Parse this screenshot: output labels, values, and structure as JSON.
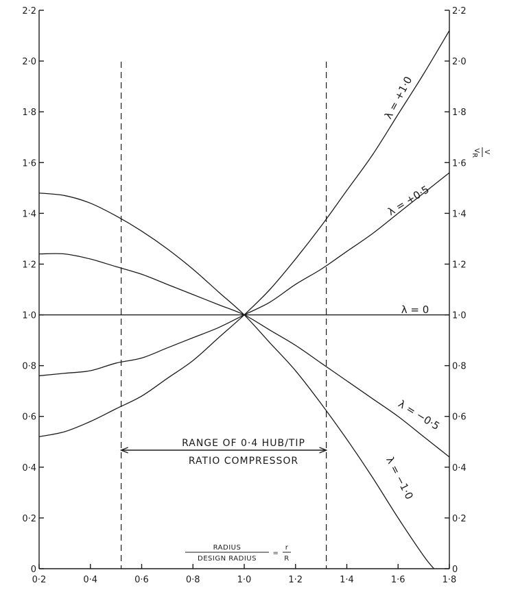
{
  "chart_data": {
    "type": "line",
    "xlabel": {
      "numerator": "RADIUS",
      "denominator": "DESIGN RADIUS",
      "equals": "=",
      "rhs_num": "r",
      "rhs_den": "R"
    },
    "ylabel_right": {
      "numerator": "V",
      "denominator": "V",
      "sub": "R"
    },
    "xlim": [
      0.2,
      1.8
    ],
    "ylim": [
      0,
      2.2
    ],
    "x_ticks": [
      "0·2",
      "0·4",
      "0·6",
      "0·8",
      "1·0",
      "1·2",
      "1·4",
      "1·6",
      "1·8"
    ],
    "x_tick_values": [
      0.2,
      0.4,
      0.6,
      0.8,
      1.0,
      1.2,
      1.4,
      1.6,
      1.8
    ],
    "y_ticks_left": [
      "0",
      "0·2",
      "0·4",
      "0·6",
      "0·8",
      "1·0",
      "1·2",
      "1·4",
      "1·6",
      "1·8",
      "2·0",
      "2·2"
    ],
    "y_ticks_right": [
      "0",
      "0·2",
      "0·4",
      "0·6",
      "0·8",
      "1·0",
      "1·2",
      "1·4",
      "1·6",
      "1·8",
      "2·0",
      "2·2"
    ],
    "y_tick_values": [
      0,
      0.2,
      0.4,
      0.6,
      0.8,
      1.0,
      1.2,
      1.4,
      1.6,
      1.8,
      2.0,
      2.2
    ],
    "series": [
      {
        "name": "λ = +1·0",
        "lambda": 1.0,
        "x": [
          0.2,
          0.3,
          0.4,
          0.5,
          0.6,
          0.7,
          0.8,
          0.9,
          1.0,
          1.1,
          1.2,
          1.3,
          1.4,
          1.5,
          1.6,
          1.7,
          1.8
        ],
        "y": [
          0.52,
          0.54,
          0.58,
          0.63,
          0.68,
          0.75,
          0.82,
          0.91,
          1.0,
          1.1,
          1.22,
          1.35,
          1.49,
          1.63,
          1.79,
          1.95,
          2.12
        ]
      },
      {
        "name": "λ = +0·5",
        "lambda": 0.5,
        "x": [
          0.2,
          0.3,
          0.4,
          0.5,
          0.6,
          0.7,
          0.8,
          0.9,
          1.0,
          1.1,
          1.2,
          1.3,
          1.4,
          1.5,
          1.6,
          1.7,
          1.8
        ],
        "y": [
          0.76,
          0.77,
          0.78,
          0.81,
          0.83,
          0.87,
          0.91,
          0.95,
          1.0,
          1.05,
          1.12,
          1.18,
          1.25,
          1.32,
          1.4,
          1.48,
          1.56
        ]
      },
      {
        "name": "λ = 0",
        "lambda": 0,
        "x": [
          0.2,
          1.8
        ],
        "y": [
          1.0,
          1.0
        ]
      },
      {
        "name": "λ = −0·5",
        "lambda": -0.5,
        "x": [
          0.2,
          0.3,
          0.4,
          0.5,
          0.6,
          0.7,
          0.8,
          0.9,
          1.0,
          1.1,
          1.2,
          1.3,
          1.4,
          1.5,
          1.6,
          1.7,
          1.8
        ],
        "y": [
          1.24,
          1.24,
          1.22,
          1.19,
          1.16,
          1.12,
          1.08,
          1.04,
          1.0,
          0.94,
          0.88,
          0.81,
          0.74,
          0.67,
          0.6,
          0.52,
          0.44
        ]
      },
      {
        "name": "λ = −1·0",
        "lambda": -1.0,
        "x": [
          0.2,
          0.3,
          0.4,
          0.5,
          0.6,
          0.7,
          0.8,
          0.9,
          1.0,
          1.1,
          1.2,
          1.3,
          1.4,
          1.5,
          1.6,
          1.7,
          1.74
        ],
        "y": [
          1.48,
          1.47,
          1.44,
          1.39,
          1.33,
          1.26,
          1.18,
          1.09,
          1.0,
          0.89,
          0.78,
          0.65,
          0.51,
          0.36,
          0.2,
          0.05,
          0.0
        ]
      }
    ],
    "range_lines_x": [
      0.52,
      1.32
    ],
    "annotation": {
      "line1": "RANGE OF 0·4 HUB/TIP",
      "line2": "RATIO COMPRESSOR"
    },
    "grid": false,
    "legend": "none (curves labelled directly)"
  }
}
